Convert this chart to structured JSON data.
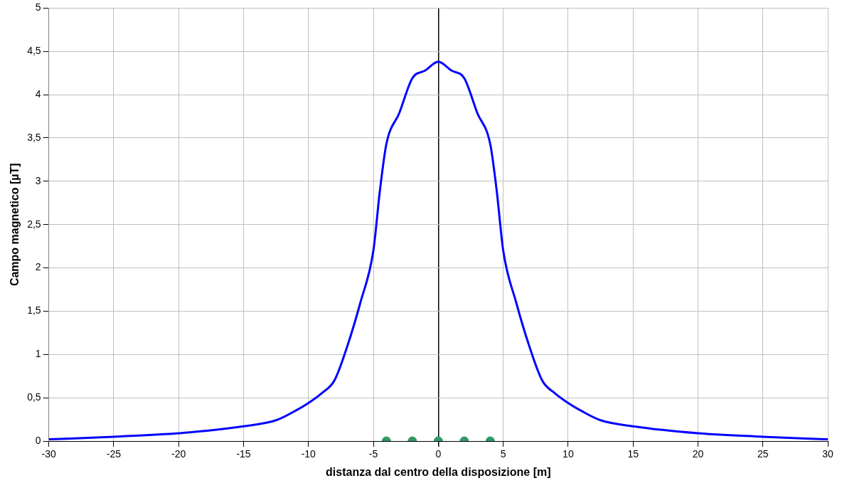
{
  "chart_data": {
    "type": "line",
    "xlabel": "distanza dal centro della disposizione [m]",
    "ylabel": "Campo magnetico [µT]",
    "xlim": [
      -30,
      30
    ],
    "xticks": [
      -30,
      -25,
      -20,
      -15,
      -10,
      -5,
      0,
      5,
      10,
      15,
      20,
      25,
      30
    ],
    "ylim": [
      0,
      5
    ],
    "yticks": [
      0,
      {
        "value": 0.5,
        "label": "0,5"
      },
      1,
      {
        "value": 1.5,
        "label": "1,5"
      },
      2,
      {
        "value": 2.5,
        "label": "2,5"
      },
      3,
      {
        "value": 3.5,
        "label": "3,5"
      },
      4,
      {
        "value": 4.5,
        "label": "4,5"
      },
      5
    ],
    "grid": true,
    "legend": false,
    "marker": "none",
    "line_style": "solid",
    "series": [
      {
        "color": "#0000ff",
        "x": [
          -30,
          -28,
          -25,
          -20,
          -15,
          -12.5,
          -11,
          -10,
          -9,
          -8,
          -7,
          -6,
          -5,
          -4.5,
          -4,
          -3,
          -2,
          -1,
          0,
          1,
          2,
          3,
          4,
          4.5,
          5,
          6,
          7,
          8,
          9,
          10,
          11,
          12.5,
          15,
          20,
          25,
          28,
          30
        ],
        "values": [
          0.02,
          0.03,
          0.05,
          0.09,
          0.17,
          0.24,
          0.35,
          0.44,
          0.55,
          0.7,
          1.1,
          1.6,
          2.2,
          2.89,
          3.43,
          3.79,
          4.19,
          4.28,
          4.38,
          4.28,
          4.19,
          3.79,
          3.43,
          2.89,
          2.2,
          1.6,
          1.1,
          0.7,
          0.55,
          0.44,
          0.35,
          0.24,
          0.17,
          0.09,
          0.05,
          0.03,
          0.02
        ]
      },
      {
        "type": "scatter",
        "color": "#339966",
        "marker": "circle",
        "x": [
          -4,
          -2,
          0,
          2,
          4
        ],
        "values": [
          0,
          0,
          0,
          0,
          0
        ]
      }
    ]
  }
}
